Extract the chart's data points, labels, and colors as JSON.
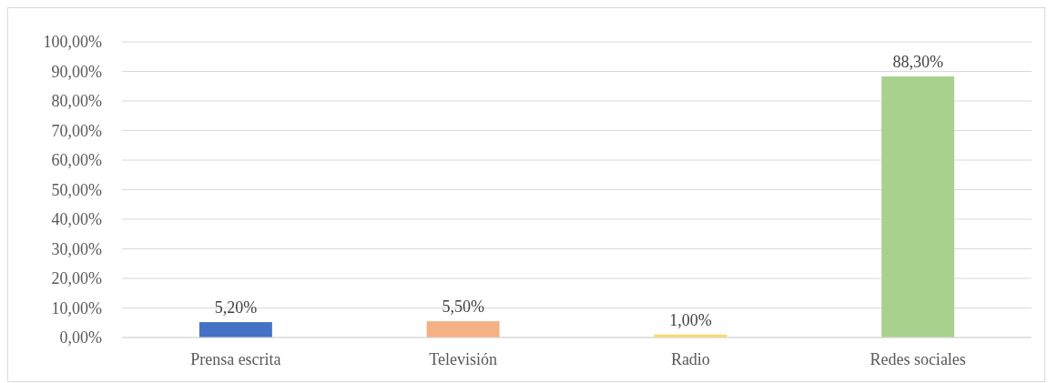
{
  "chart_data": {
    "type": "bar",
    "categories": [
      "Prensa escrita",
      "Televisión",
      "Radio",
      "Redes sociales"
    ],
    "values": [
      5.2,
      5.5,
      1.0,
      88.3
    ],
    "colors": [
      "#4472c4",
      "#f4b183",
      "#ffd966",
      "#a9d18e"
    ],
    "value_labels": [
      "5,20%",
      "5,50%",
      "1,00%",
      "88,30%"
    ],
    "ylim": [
      0,
      100
    ],
    "yticks": [
      {
        "value": 0,
        "label": "0,00%"
      },
      {
        "value": 10,
        "label": "10,00%"
      },
      {
        "value": 20,
        "label": "20,00%"
      },
      {
        "value": 30,
        "label": "30,00%"
      },
      {
        "value": 40,
        "label": "40,00%"
      },
      {
        "value": 50,
        "label": "50,00%"
      },
      {
        "value": 60,
        "label": "60,00%"
      },
      {
        "value": 70,
        "label": "70,00%"
      },
      {
        "value": 80,
        "label": "80,00%"
      },
      {
        "value": 90,
        "label": "90,00%"
      },
      {
        "value": 100,
        "label": "100,00%"
      }
    ],
    "grid": "y"
  }
}
